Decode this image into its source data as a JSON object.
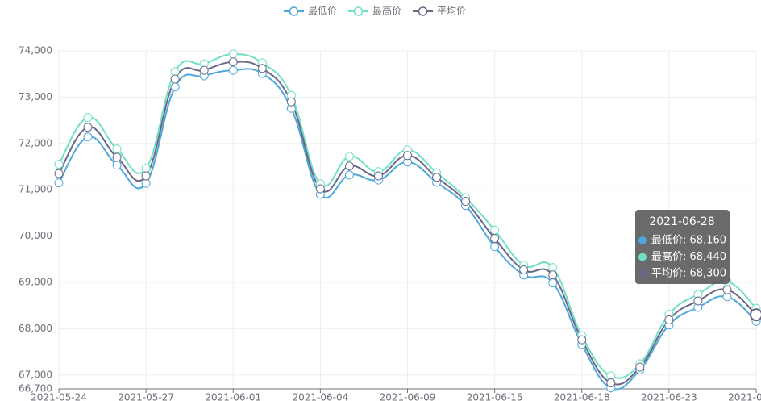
{
  "chart_data": {
    "type": "line",
    "categories": [
      "2021-05-24",
      null,
      null,
      "2021-05-27",
      null,
      null,
      "2021-06-01",
      null,
      null,
      "2021-06-04",
      null,
      null,
      "2021-06-09",
      null,
      null,
      "2021-06-15",
      null,
      null,
      "2021-06-18",
      null,
      null,
      "2021-06-23",
      null,
      null,
      "2021-06-28"
    ],
    "series": [
      {
        "name": "最低价",
        "color": "#4fa8d9",
        "values": [
          71150,
          72140,
          71530,
          71140,
          73220,
          73460,
          73580,
          73510,
          72760,
          70900,
          71320,
          71210,
          71600,
          71160,
          70660,
          69770,
          69160,
          68990,
          67660,
          66720,
          67110,
          68080,
          68460,
          68690,
          68160
        ]
      },
      {
        "name": "最高价",
        "color": "#70e0c4",
        "values": [
          71550,
          72560,
          71880,
          71460,
          73550,
          73720,
          73930,
          73740,
          73040,
          71130,
          71720,
          71390,
          71860,
          71370,
          70830,
          70130,
          69370,
          69320,
          67850,
          66980,
          67240,
          68310,
          68740,
          69020,
          68440
        ]
      },
      {
        "name": "平均价",
        "color": "#6b6686",
        "values": [
          71350,
          72350,
          71700,
          71300,
          73390,
          73580,
          73760,
          73620,
          72900,
          71020,
          71510,
          71300,
          71740,
          71270,
          70750,
          69950,
          69270,
          69160,
          67760,
          66830,
          67170,
          68190,
          68600,
          68840,
          68300
        ]
      }
    ],
    "ylim": [
      66700,
      74000
    ],
    "yticks": [
      {
        "value": 66700,
        "label": "66,700"
      },
      {
        "value": 67000,
        "label": "67,000"
      },
      {
        "value": 68000,
        "label": "68,000"
      },
      {
        "value": 69000,
        "label": "69,000"
      },
      {
        "value": 70000,
        "label": "70,000"
      },
      {
        "value": 71000,
        "label": "71,000"
      },
      {
        "value": 72000,
        "label": "72,000"
      },
      {
        "value": 73000,
        "label": "73,000"
      },
      {
        "value": 74000,
        "label": "74,000"
      }
    ],
    "grid": true,
    "legend": "top",
    "tooltip": {
      "rows": [
        "最低价: 68,160",
        "最高价: 68,440",
        "平均价: 68,300"
      ]
    }
  }
}
